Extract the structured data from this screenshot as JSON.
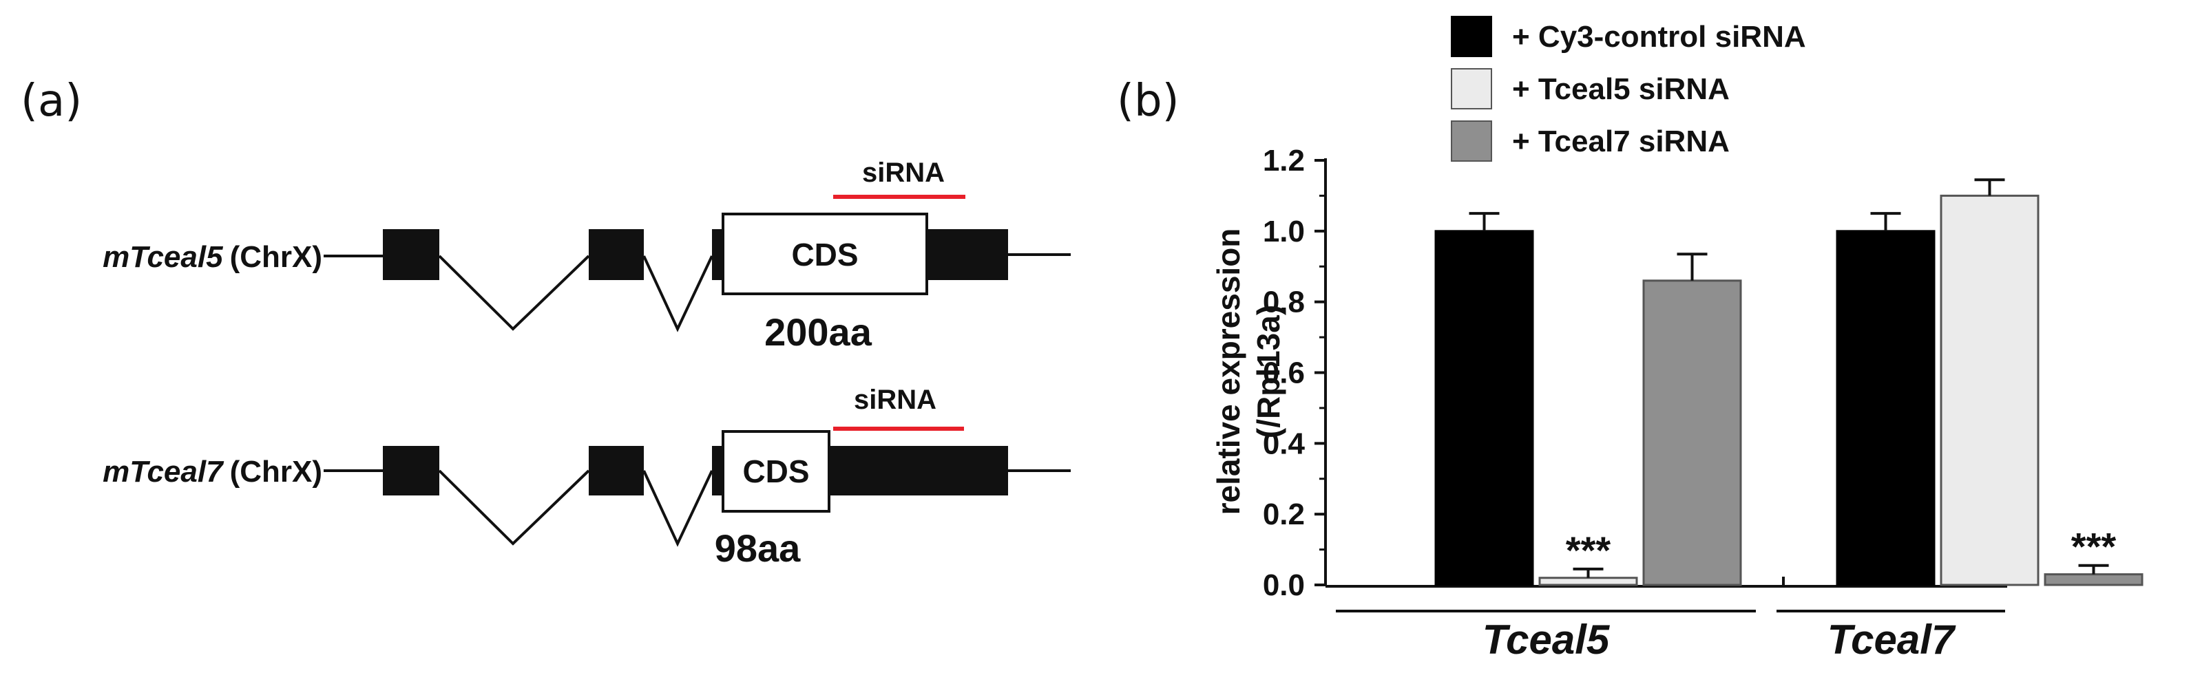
{
  "panel_a": {
    "label": "(a)",
    "genes": [
      {
        "name": "mTceal5",
        "chrom": "(ChrX)",
        "cds_label": "CDS",
        "aa_label": "200aa",
        "sirna_label": "siRNA"
      },
      {
        "name": "mTceal7",
        "chrom": "(ChrX)",
        "cds_label": "CDS",
        "aa_label": "98aa",
        "sirna_label": "siRNA"
      }
    ],
    "colors": {
      "exon": "#111111",
      "sirna": "#e8202a",
      "cds_fill": "#ffffff"
    }
  },
  "panel_b": {
    "label": "(b)"
  },
  "chart_data": {
    "type": "bar",
    "title": "",
    "xlabel": "",
    "ylabel": "relative expression",
    "ylabel_sub": "(/Rpl13a)",
    "ylim": [
      0,
      1.2
    ],
    "yticks": [
      "0.0",
      "0.2",
      "0.4",
      "0.6",
      "0.8",
      "1.0",
      "1.2"
    ],
    "categories": [
      "Tceal5",
      "Tceal7"
    ],
    "legend_position": "top",
    "series": [
      {
        "name": "+ Cy3-control siRNA",
        "color": "#000000",
        "values": [
          1.0,
          1.0
        ],
        "errors": [
          0.05,
          0.05
        ],
        "annotations": [
          "",
          ""
        ]
      },
      {
        "name": "+ Tceal5 siRNA",
        "color": "#ebebeb",
        "values": [
          0.02,
          1.1
        ],
        "errors": [
          0.025,
          0.045
        ],
        "annotations": [
          "***",
          ""
        ]
      },
      {
        "name": "+ Tceal7 siRNA",
        "color": "#8f8f8f",
        "values": [
          0.86,
          0.03
        ],
        "errors": [
          0.075,
          0.025
        ],
        "annotations": [
          "",
          "***"
        ]
      }
    ]
  }
}
